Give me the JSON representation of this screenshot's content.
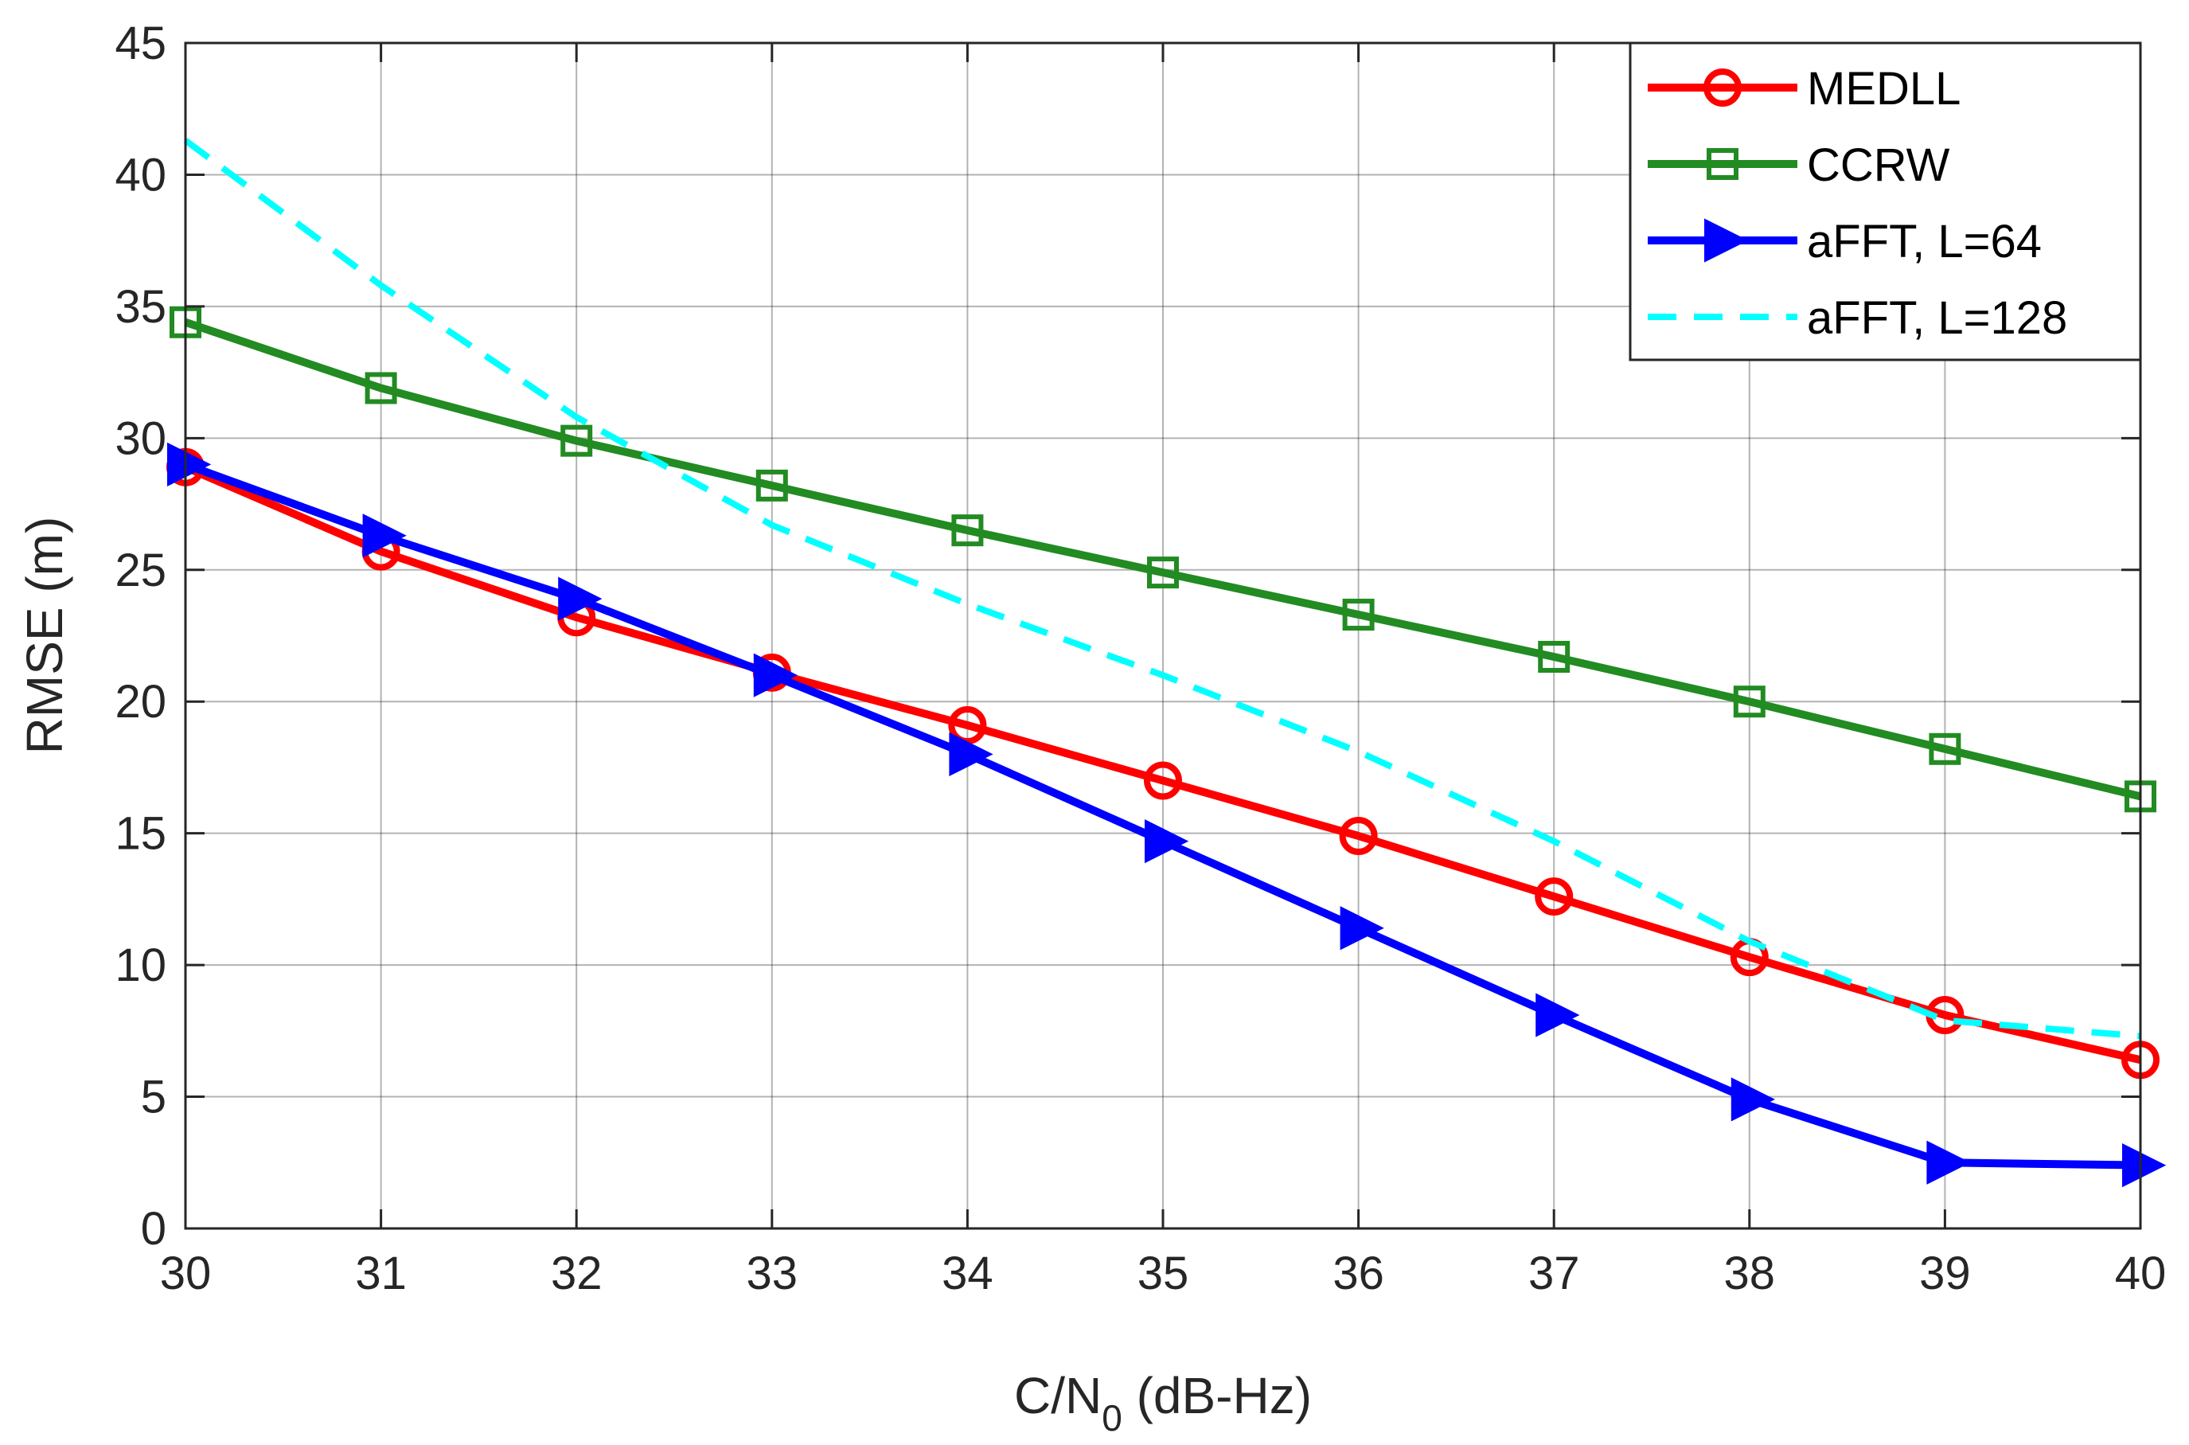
{
  "chart_data": {
    "type": "line",
    "title": "",
    "xlabel": "C/N",
    "xlabel_sub": "0",
    "xlabel_suffix": " (dB-Hz)",
    "ylabel": "RMSE (m)",
    "xlim": [
      30,
      40
    ],
    "ylim": [
      0,
      45
    ],
    "x_ticks": [
      "30",
      "31",
      "32",
      "33",
      "34",
      "35",
      "36",
      "37",
      "38",
      "39",
      "40"
    ],
    "y_ticks": [
      "0",
      "5",
      "10",
      "15",
      "20",
      "25",
      "30",
      "35",
      "40",
      "45"
    ],
    "grid": true,
    "legend_position": "top-right",
    "x": [
      30,
      31,
      32,
      33,
      34,
      35,
      36,
      37,
      38,
      39,
      40
    ],
    "series": [
      {
        "name": "MEDLL",
        "color": "#ff0000",
        "marker": "circle",
        "dash": "solid",
        "values": [
          28.9,
          25.7,
          23.2,
          21.1,
          19.1,
          17.0,
          14.9,
          12.6,
          10.3,
          8.1,
          6.4
        ]
      },
      {
        "name": "CCRW",
        "color": "#228b22",
        "marker": "square",
        "dash": "solid",
        "values": [
          34.4,
          31.9,
          29.9,
          28.2,
          26.5,
          24.9,
          23.3,
          21.7,
          20.0,
          18.2,
          16.4
        ]
      },
      {
        "name": "aFFT, L=64",
        "color": "#0000ff",
        "marker": "triangle-right",
        "dash": "solid",
        "values": [
          29.0,
          26.3,
          23.9,
          21.0,
          18.0,
          14.7,
          11.4,
          8.1,
          4.9,
          2.5,
          2.4
        ]
      },
      {
        "name": "aFFT, L=128",
        "color": "#00ffff",
        "marker": "none",
        "dash": "dashed",
        "values": [
          41.3,
          35.8,
          30.8,
          26.7,
          23.7,
          21.0,
          18.1,
          14.7,
          10.9,
          7.9,
          7.3
        ]
      }
    ]
  }
}
